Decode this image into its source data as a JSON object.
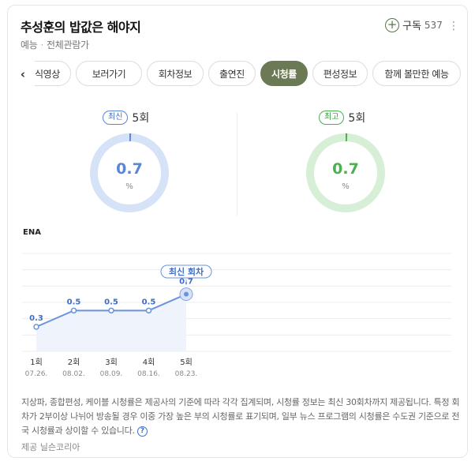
{
  "header": {
    "title": "추성훈의 밥값은 해야지",
    "genre": "예능",
    "rating": "전체관람가",
    "subscribe_label": "구독",
    "subscribe_count": "537"
  },
  "tabs": [
    {
      "label": "식영상",
      "active": false
    },
    {
      "label": "보러가기",
      "active": false
    },
    {
      "label": "회차정보",
      "active": false
    },
    {
      "label": "출연진",
      "active": false
    },
    {
      "label": "시청률",
      "active": true
    },
    {
      "label": "편성정보",
      "active": false
    },
    {
      "label": "함께 볼만한 예능",
      "active": false
    }
  ],
  "latest": {
    "badge": "최신",
    "episode": "5회",
    "value": "0.7",
    "unit": "%",
    "fraction": 0.007,
    "color": "#5b86d4",
    "track": "#d6e2f7"
  },
  "best": {
    "badge": "최고",
    "episode": "5회",
    "value": "0.7",
    "unit": "%",
    "fraction": 0.007,
    "color": "#4caf50",
    "track": "#d7efd6"
  },
  "channel": "ENA",
  "chart_data": {
    "type": "line",
    "x": [
      "1회",
      "2회",
      "3회",
      "4회",
      "5회"
    ],
    "dates": [
      "07.26.",
      "08.02.",
      "08.09.",
      "08.16.",
      "08.23."
    ],
    "values": [
      0.3,
      0.5,
      0.5,
      0.5,
      0.7
    ],
    "ylim": [
      0,
      1.2
    ],
    "highlight_label": "최신 회차",
    "line_color": "#6b93db",
    "fill_color": "#eef3fc",
    "grid": true
  },
  "disclaimer": "지상파, 종합편성, 케이블 시청률은 제공사의 기준에 따라 각각 집계되며, 시청률 정보는 최신 30회차까지 제공됩니다. 특정 회차가 2부이상 나뉘어 방송될 경우 이중 가장 높은 부의 시청률로 표기되며, 일부 뉴스 프로그램의 시청률은 수도권 기준으로 전국 시청률과 상이할 수 있습니다.",
  "source": "제공 닐슨코리아"
}
